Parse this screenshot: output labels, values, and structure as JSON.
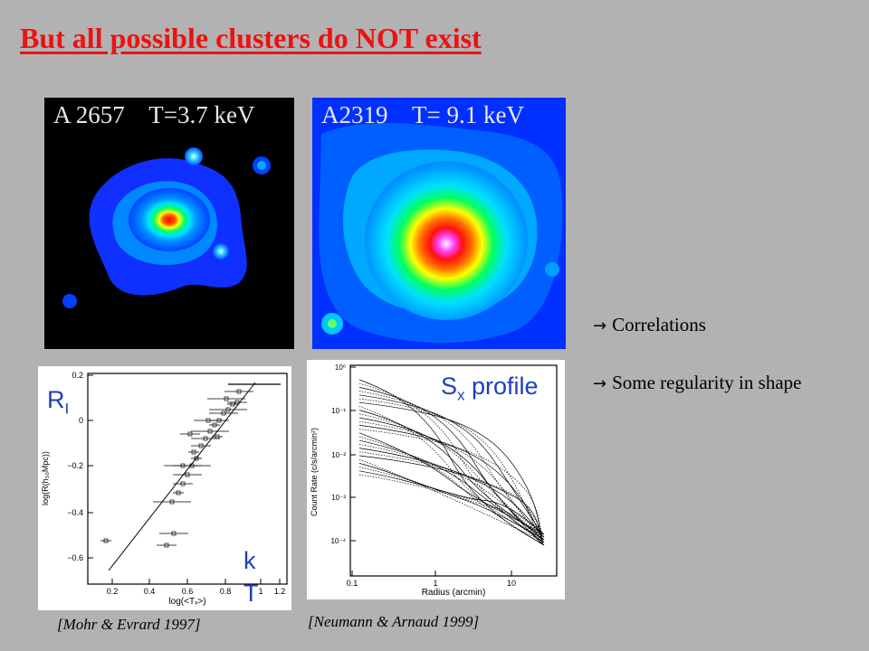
{
  "slide": {
    "title": "But all possible clusters  do NOT exist"
  },
  "clusters": [
    {
      "name": "A 2657",
      "temperature": "T=3.7 keV"
    },
    {
      "name": "A2319",
      "temperature": "T= 9.1 keV"
    }
  ],
  "bullets": [
    {
      "arrow": "→",
      "text": "Correlations"
    },
    {
      "arrow": "→",
      "text": "Some regularity in shape"
    }
  ],
  "plot_left": {
    "overlay_r": "R",
    "overlay_r_sub": "I",
    "overlay_k": "k",
    "overlay_t": "T",
    "ylabel": "log(R(h₅₀Mpc))",
    "xlabel": "log(<Tₓ>)",
    "yticks": [
      "0.2",
      "0",
      "−0.2",
      "−0.4",
      "−0.6"
    ],
    "xticks": [
      "0.2",
      "0.4",
      "0.6",
      "0.8",
      "1",
      "1.2"
    ],
    "caption": "[Mohr & Evrard 1997]"
  },
  "plot_right": {
    "overlay_s": "S",
    "overlay_sub": "x",
    "overlay_rest": " profile",
    "ylabel": "Count Rate (c/s/arcmin²)",
    "xlabel": "Radius (arcmin)",
    "yticks": [
      "10⁰",
      "10⁻¹",
      "10⁻²",
      "10⁻³",
      "10⁻⁴"
    ],
    "xticks": [
      "0.1",
      "1",
      "10"
    ],
    "caption": "[Neumann & Arnaud 1999]"
  },
  "colors": {
    "title": "#ee1111",
    "background": "#b2b2b2",
    "overlay_text": "#1f3fbf"
  }
}
